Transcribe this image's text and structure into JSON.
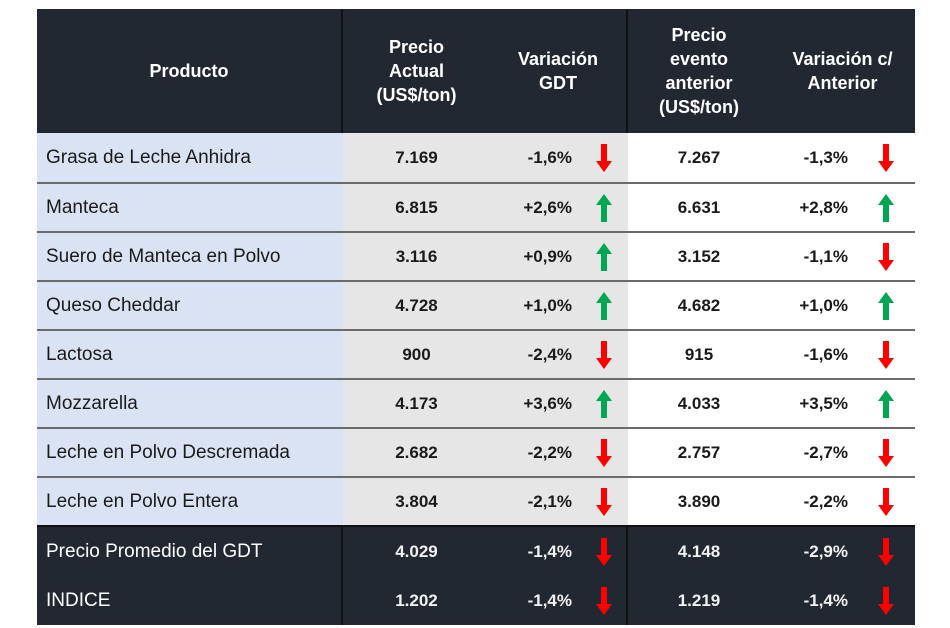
{
  "table": {
    "headers": {
      "producto": "Producto",
      "precio_actual": [
        "Precio",
        "Actual",
        "(US$/ton)"
      ],
      "variacion_gdt": [
        "Variación",
        "GDT"
      ],
      "precio_anterior": [
        "Precio",
        "evento",
        "anterior",
        "(US$/ton)"
      ],
      "variacion_anterior": [
        "Variación c/",
        "Anterior"
      ]
    },
    "rows": [
      {
        "producto": "Grasa de Leche Anhidra",
        "precio_actual": "7.169",
        "var_gdt": "-1,6%",
        "var_gdt_dir": "down",
        "precio_anterior": "7.267",
        "var_ant": "-1,3%",
        "var_ant_dir": "down"
      },
      {
        "producto": "Manteca",
        "precio_actual": "6.815",
        "var_gdt": "+2,6%",
        "var_gdt_dir": "up",
        "precio_anterior": "6.631",
        "var_ant": "+2,8%",
        "var_ant_dir": "up"
      },
      {
        "producto": "Suero de Manteca en Polvo",
        "precio_actual": "3.116",
        "var_gdt": "+0,9%",
        "var_gdt_dir": "up",
        "precio_anterior": "3.152",
        "var_ant": "-1,1%",
        "var_ant_dir": "down"
      },
      {
        "producto": "Queso Cheddar",
        "precio_actual": "4.728",
        "var_gdt": "+1,0%",
        "var_gdt_dir": "up",
        "precio_anterior": "4.682",
        "var_ant": "+1,0%",
        "var_ant_dir": "up"
      },
      {
        "producto": "Lactosa",
        "precio_actual": "900",
        "var_gdt": "-2,4%",
        "var_gdt_dir": "down",
        "precio_anterior": "915",
        "var_ant": "-1,6%",
        "var_ant_dir": "down"
      },
      {
        "producto": "Mozzarella",
        "precio_actual": "4.173",
        "var_gdt": "+3,6%",
        "var_gdt_dir": "up",
        "precio_anterior": "4.033",
        "var_ant": "+3,5%",
        "var_ant_dir": "up"
      },
      {
        "producto": "Leche en Polvo Descremada",
        "precio_actual": "2.682",
        "var_gdt": "-2,2%",
        "var_gdt_dir": "down",
        "precio_anterior": "2.757",
        "var_ant": "-2,7%",
        "var_ant_dir": "down"
      },
      {
        "producto": "Leche en Polvo Entera",
        "precio_actual": "3.804",
        "var_gdt": "-2,1%",
        "var_gdt_dir": "down",
        "precio_anterior": "3.890",
        "var_ant": "-2,2%",
        "var_ant_dir": "down"
      }
    ],
    "footer": [
      {
        "producto": "Precio Promedio del GDT",
        "precio_actual": "4.029",
        "var_gdt": "-1,4%",
        "var_gdt_dir": "down",
        "precio_anterior": "4.148",
        "var_ant": "-2,9%",
        "var_ant_dir": "down"
      },
      {
        "producto": "INDICE",
        "precio_actual": "1.202",
        "var_gdt": "-1,4%",
        "var_gdt_dir": "down",
        "precio_anterior": "1.219",
        "var_ant": "-1,4%",
        "var_ant_dir": "down"
      }
    ]
  },
  "colors": {
    "header_bg": "#222831",
    "product_col_bg": "#dae3f3",
    "current_col_bg": "#e7e6e6",
    "up_arrow": "#00a651",
    "down_arrow": "#ff0000"
  }
}
